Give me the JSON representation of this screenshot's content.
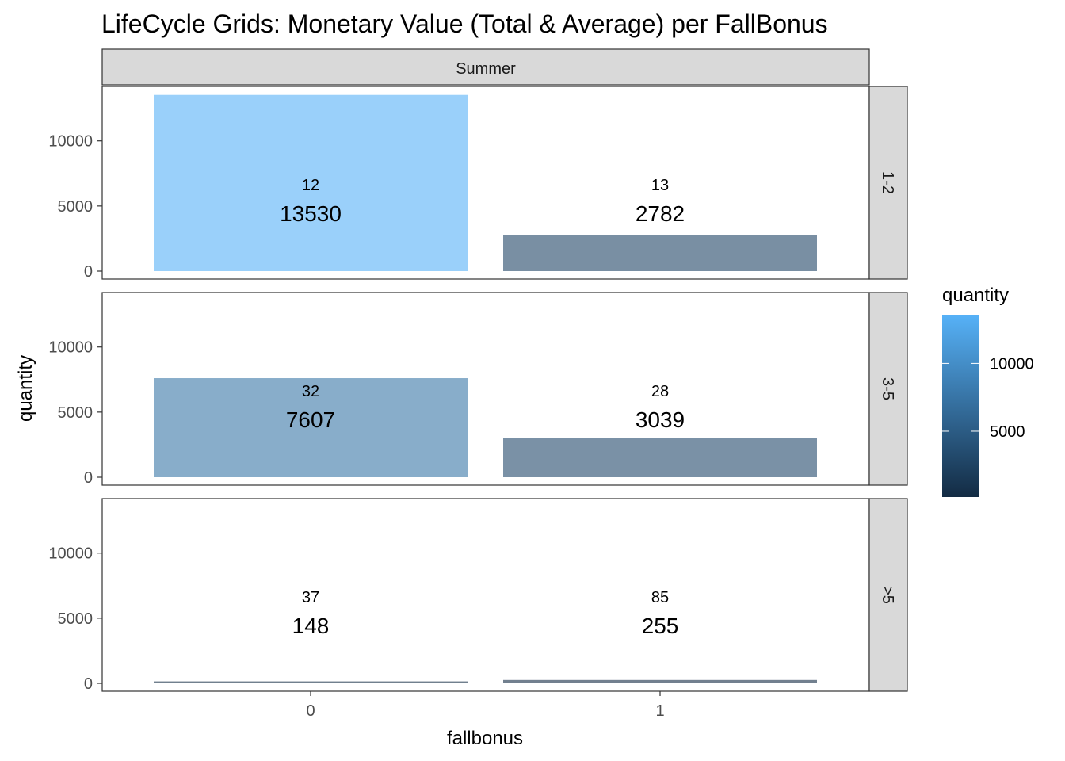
{
  "chart_data": {
    "type": "bar",
    "title": "LifeCycle Grids: Monetary Value (Total & Average) per FallBonus",
    "xlabel": "fallbonus",
    "ylabel": "quantity",
    "ylim": [
      0,
      14000
    ],
    "yticks": [
      0,
      5000,
      10000
    ],
    "categories": [
      "0",
      "1"
    ],
    "column_facet": "Summer",
    "row_facets": [
      {
        "label": "1-2",
        "values": [
          13530,
          2782
        ],
        "bar_labels": [
          "13530",
          "2782"
        ],
        "count_labels": [
          "12",
          "13"
        ]
      },
      {
        "label": "3-5",
        "values": [
          7607,
          3039
        ],
        "bar_labels": [
          "7607",
          "3039"
        ],
        "count_labels": [
          "32",
          "28"
        ]
      },
      {
        "label": ">5",
        "values": [
          148,
          255
        ],
        "bar_labels": [
          "148",
          "255"
        ],
        "count_labels": [
          "37",
          "85"
        ]
      }
    ],
    "legend": {
      "title": "quantity",
      "position": "right",
      "ticks": [
        5000,
        10000
      ],
      "tick_labels": [
        "5000",
        "10000"
      ],
      "range": [
        148,
        13530
      ],
      "low_color": "#132b43",
      "high_color": "#56b1f7"
    },
    "bar_fill_opacity": 0.6
  }
}
